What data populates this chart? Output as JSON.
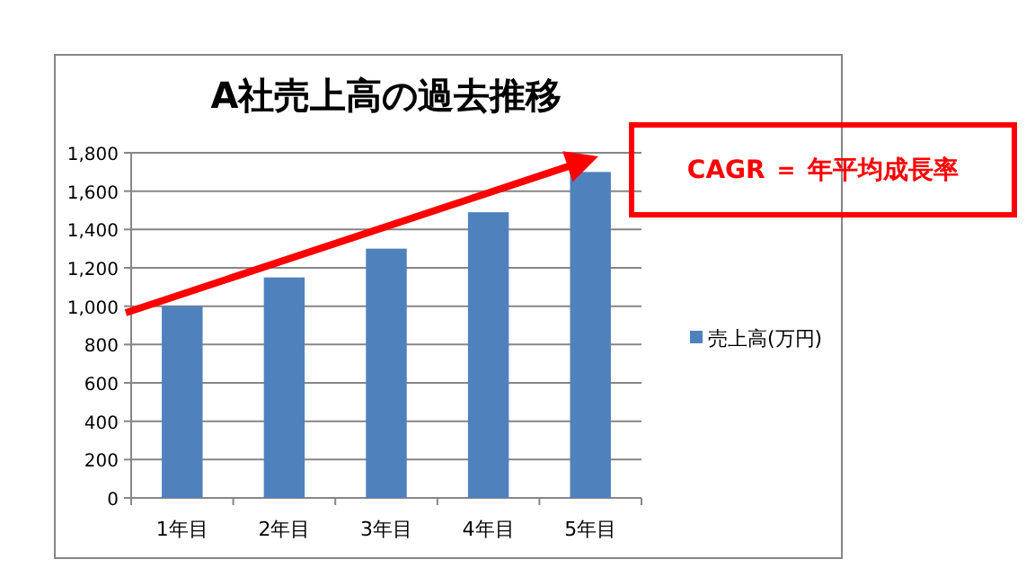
{
  "chart_data": {
    "type": "bar",
    "title": "A社売上高の過去推移",
    "categories": [
      "1年目",
      "2年目",
      "3年目",
      "4年目",
      "5年目"
    ],
    "series": [
      {
        "name": "売上高(万円)",
        "color": "#4f81bd",
        "values": [
          1000,
          1150,
          1300,
          1490,
          1700
        ]
      }
    ],
    "ylim": [
      0,
      1800
    ],
    "yticks": [
      0,
      200,
      400,
      600,
      800,
      {
        "value": 1000,
        "label": "1,000"
      },
      {
        "value": 1200,
        "label": "1,200"
      },
      {
        "value": 1400,
        "label": "1,400"
      },
      {
        "value": 1600,
        "label": "1,600"
      },
      {
        "value": 1800,
        "label": "1,800"
      }
    ],
    "grid": "y",
    "legend": "right",
    "annotations": [
      "CAGR ＝ 年平均成長率"
    ]
  }
}
